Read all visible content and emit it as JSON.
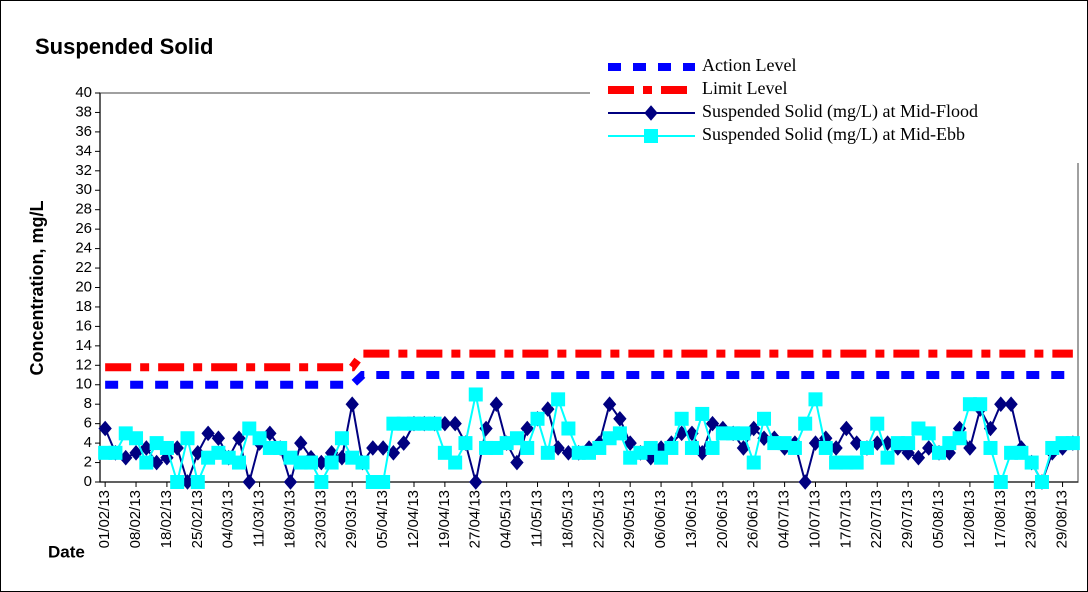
{
  "chart_data": {
    "type": "line",
    "title": "Suspended Solid",
    "y_label": "Concentration, mg/L",
    "x_label": "Date",
    "categories": [
      "01/02/13",
      null,
      null,
      "08/02/13",
      null,
      null,
      "18/02/13",
      null,
      null,
      "25/02/13",
      null,
      null,
      "04/03/13",
      null,
      null,
      "11/03/13",
      null,
      null,
      "18/03/13",
      null,
      null,
      "23/03/13",
      null,
      null,
      "29/03/13",
      null,
      null,
      "05/04/13",
      null,
      null,
      "12/04/13",
      null,
      null,
      "19/04/13",
      null,
      null,
      "27/04/13",
      null,
      null,
      "04/05/13",
      null,
      null,
      "11/05/13",
      null,
      null,
      "18/05/13",
      null,
      null,
      "22/05/13",
      null,
      null,
      "29/05/13",
      null,
      null,
      "06/06/13",
      null,
      null,
      "13/06/13",
      null,
      null,
      "20/06/13",
      null,
      null,
      "26/06/13",
      null,
      null,
      "04/07/13",
      null,
      null,
      "10/07/13",
      null,
      null,
      "17/07/13",
      null,
      null,
      "22/07/13",
      null,
      null,
      "29/07/13",
      null,
      null,
      "05/08/13",
      null,
      null,
      "12/08/13",
      null,
      null,
      "17/08/13",
      null,
      null,
      "23/08/13",
      null,
      null,
      "29/08/13",
      null
    ],
    "ylim": [
      0,
      40
    ],
    "yticks": [
      0,
      2,
      4,
      6,
      8,
      10,
      12,
      14,
      16,
      18,
      20,
      22,
      24,
      26,
      28,
      30,
      32,
      34,
      36,
      38,
      40
    ],
    "series": [
      {
        "name": "Action Level",
        "color": "#0000ff",
        "style": "dashed",
        "marker": "none",
        "values": [
          10,
          10,
          10,
          10,
          10,
          10,
          10,
          10,
          10,
          10,
          10,
          10,
          10,
          10,
          10,
          10,
          10,
          10,
          10,
          10,
          10,
          10,
          10,
          10,
          10,
          11,
          11,
          11,
          11,
          11,
          11,
          11,
          11,
          11,
          11,
          11,
          11,
          11,
          11,
          11,
          11,
          11,
          11,
          11,
          11,
          11,
          11,
          11,
          11,
          11,
          11,
          11,
          11,
          11,
          11,
          11,
          11,
          11,
          11,
          11,
          11,
          11,
          11,
          11,
          11,
          11,
          11,
          11,
          11,
          11,
          11,
          11,
          11,
          11,
          11,
          11,
          11,
          11,
          11,
          11,
          11,
          11,
          11,
          11,
          11,
          11,
          11,
          11,
          11,
          11,
          11,
          11,
          11,
          11,
          11
        ]
      },
      {
        "name": "Limit Level",
        "color": "#ff0000",
        "style": "dashdot",
        "marker": "none",
        "values": [
          11.8,
          11.8,
          11.8,
          11.8,
          11.8,
          11.8,
          11.8,
          11.8,
          11.8,
          11.8,
          11.8,
          11.8,
          11.8,
          11.8,
          11.8,
          11.8,
          11.8,
          11.8,
          11.8,
          11.8,
          11.8,
          11.8,
          11.8,
          11.8,
          11.8,
          13.2,
          13.2,
          13.2,
          13.2,
          13.2,
          13.2,
          13.2,
          13.2,
          13.2,
          13.2,
          13.2,
          13.2,
          13.2,
          13.2,
          13.2,
          13.2,
          13.2,
          13.2,
          13.2,
          13.2,
          13.2,
          13.2,
          13.2,
          13.2,
          13.2,
          13.2,
          13.2,
          13.2,
          13.2,
          13.2,
          13.2,
          13.2,
          13.2,
          13.2,
          13.2,
          13.2,
          13.2,
          13.2,
          13.2,
          13.2,
          13.2,
          13.2,
          13.2,
          13.2,
          13.2,
          13.2,
          13.2,
          13.2,
          13.2,
          13.2,
          13.2,
          13.2,
          13.2,
          13.2,
          13.2,
          13.2,
          13.2,
          13.2,
          13.2,
          13.2,
          13.2,
          13.2,
          13.2,
          13.2,
          13.2,
          13.2,
          13.2,
          13.2,
          13.2,
          13.2
        ]
      },
      {
        "name": "Suspended Solid (mg/L) at Mid-Flood",
        "color": "#000080",
        "style": "solid",
        "marker": "diamond",
        "values": [
          5.5,
          3,
          2.5,
          3,
          3.5,
          2,
          2.5,
          3.5,
          0,
          3,
          5,
          4.5,
          2.5,
          4.5,
          0,
          4,
          5,
          3.5,
          0,
          4,
          2.5,
          2,
          3,
          2.5,
          8,
          2,
          3.5,
          3.5,
          3,
          4,
          6,
          6,
          6,
          6,
          6,
          4,
          0,
          5.5,
          8,
          4,
          2,
          5.5,
          6.5,
          7.5,
          3.5,
          3,
          3,
          3.5,
          4,
          8,
          6.5,
          4,
          3,
          2.5,
          3.5,
          4,
          5,
          5,
          3,
          6,
          5.5,
          5,
          3.5,
          5.5,
          4.5,
          4.5,
          3.5,
          4,
          0,
          4,
          4.5,
          3.5,
          5.5,
          4,
          3.5,
          4,
          4,
          3.5,
          3,
          2.5,
          3.5,
          3,
          3,
          5.5,
          3.5,
          7.5,
          5.5,
          8,
          8,
          3.5,
          2,
          0,
          3,
          3.5,
          4
        ]
      },
      {
        "name": "Suspended Solid (mg/L) at Mid-Ebb",
        "color": "#00ffff",
        "style": "solid",
        "marker": "square",
        "values": [
          3,
          3,
          5,
          4.5,
          2,
          4,
          3.5,
          0,
          4.5,
          0,
          2.5,
          3,
          2.5,
          2,
          5.5,
          4.5,
          3.5,
          3.5,
          2.5,
          2,
          2,
          0,
          2,
          4.5,
          2.5,
          2,
          0,
          0,
          6,
          6,
          6,
          6,
          6,
          3,
          2,
          4,
          9,
          3.5,
          3.5,
          4,
          4.5,
          3.5,
          6.5,
          3,
          8.5,
          5.5,
          3,
          3,
          3.5,
          4.5,
          5,
          2.5,
          3,
          3.5,
          2.5,
          3.5,
          6.5,
          3.5,
          7,
          3.5,
          5,
          5,
          5,
          2,
          6.5,
          4,
          4,
          3.5,
          6,
          8.5,
          3.5,
          2,
          2,
          2,
          3.5,
          6,
          2.5,
          4,
          4,
          5.5,
          5,
          3,
          4,
          4.5,
          8,
          8,
          3.5,
          0,
          3,
          3,
          2,
          0,
          3.5,
          4,
          4
        ]
      }
    ]
  }
}
